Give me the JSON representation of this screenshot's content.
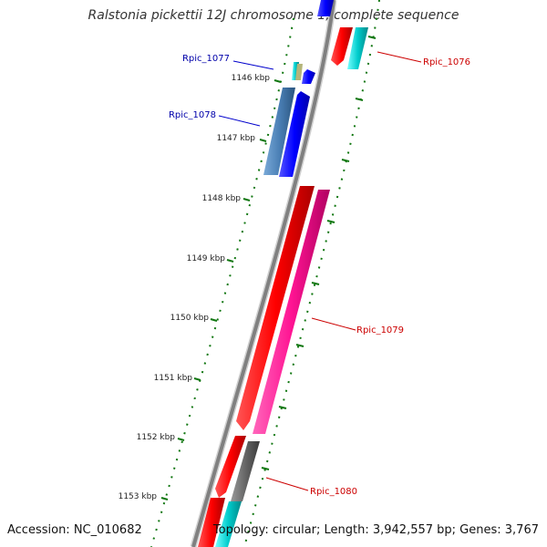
{
  "title": "Ralstonia pickettii 12J chromosome 1, complete sequence",
  "footer": {
    "accession": "Accession: NC_010682",
    "topology": "Topology: circular; Length: 3,942,557 bp; Genes: 3,767"
  },
  "ticks": [
    "1146 kbp",
    "1147 kbp",
    "1148 kbp",
    "1149 kbp",
    "1150 kbp",
    "1151 kbp",
    "1152 kbp",
    "1153 kbp"
  ],
  "genes": [
    {
      "label": "Rpic_1076",
      "color": "#cc0000"
    },
    {
      "label": "Rpic_1077",
      "color": "#0000aa"
    },
    {
      "label": "Rpic_1078",
      "color": "#0000aa"
    },
    {
      "label": "Rpic_1079",
      "color": "#cc0000"
    },
    {
      "label": "Rpic_1080",
      "color": "#cc0000"
    }
  ],
  "colors": {
    "backbone": "#808080",
    "red": "#ff0000",
    "magenta": "#ff1493",
    "cyan": "#00cccc",
    "blue": "#0000ff",
    "steel": "#4a7fb5",
    "gray": "#666666",
    "olive": "#b5b57a",
    "tick": "#117711"
  }
}
